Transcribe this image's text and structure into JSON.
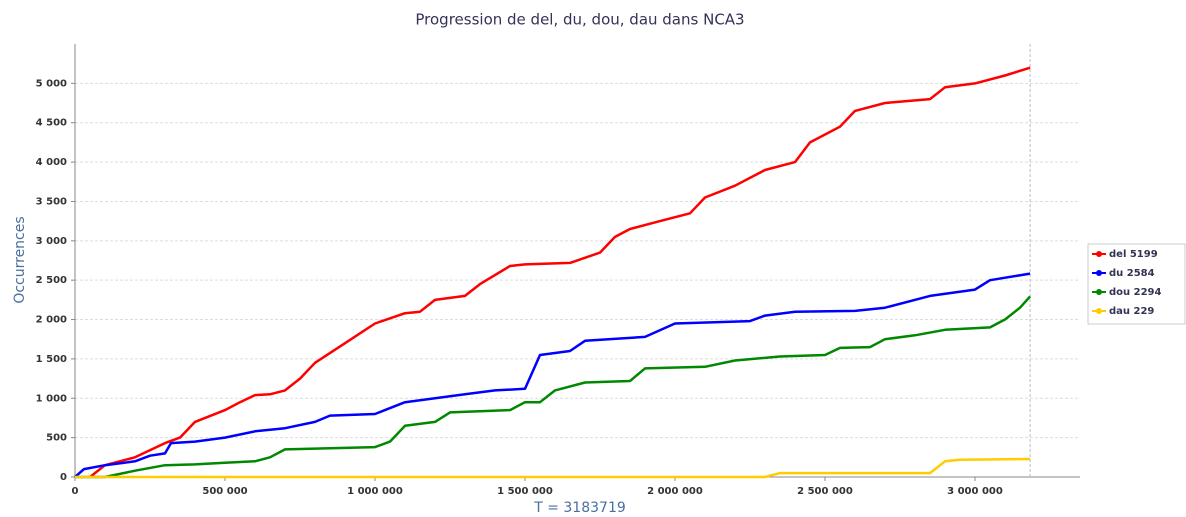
{
  "chart_data": {
    "type": "line",
    "title": "Progression de del, du, dou, dau dans NCA3",
    "x_label": "T = 3183719",
    "y_label": "Occurrences",
    "xlim": [
      0,
      3350000
    ],
    "ylim": [
      0,
      5500
    ],
    "xticks": [
      0,
      {
        "value": 500000,
        "label": "500 000"
      },
      {
        "value": 1000000,
        "label": "1 000 000"
      },
      {
        "value": 1500000,
        "label": "1 500 000"
      },
      {
        "value": 2000000,
        "label": "2 000 000"
      },
      {
        "value": 2500000,
        "label": "2 500 000"
      },
      {
        "value": 3000000,
        "label": "3 000 000"
      }
    ],
    "yticks": [
      0,
      500,
      {
        "value": 1000,
        "label": "1 000"
      },
      {
        "value": 1500,
        "label": "1 500"
      },
      {
        "value": 2000,
        "label": "2 000"
      },
      {
        "value": 2500,
        "label": "2 500"
      },
      {
        "value": 3000,
        "label": "3 000"
      },
      {
        "value": 3500,
        "label": "3 500"
      },
      {
        "value": 4000,
        "label": "4 000"
      },
      {
        "value": 4500,
        "label": "4 500"
      },
      {
        "value": 5000,
        "label": "5 000"
      }
    ],
    "grid": true,
    "marker_line_x": 3183719,
    "legend": "right",
    "series": [
      {
        "name": "del 5199",
        "color": "#ff0000",
        "x": [
          50000,
          100000,
          200000,
          300000,
          350000,
          400000,
          500000,
          550000,
          600000,
          650000,
          700000,
          750000,
          800000,
          900000,
          1000000,
          1100000,
          1150000,
          1200000,
          1300000,
          1350000,
          1450000,
          1500000,
          1650000,
          1750000,
          1800000,
          1850000,
          1950000,
          2050000,
          2100000,
          2200000,
          2300000,
          2400000,
          2450000,
          2550000,
          2600000,
          2700000,
          2850000,
          2900000,
          3000000,
          3100000,
          3183719
        ],
        "values": [
          0,
          150,
          250,
          430,
          500,
          700,
          850,
          950,
          1040,
          1050,
          1100,
          1250,
          1450,
          1700,
          1950,
          2080,
          2100,
          2250,
          2300,
          2450,
          2680,
          2700,
          2720,
          2850,
          3050,
          3150,
          3250,
          3350,
          3550,
          3700,
          3900,
          4000,
          4250,
          4450,
          4650,
          4750,
          4800,
          4950,
          5000,
          5100,
          5199
        ]
      },
      {
        "name": "du 2584",
        "color": "#0000ff",
        "x": [
          0,
          30000,
          100000,
          200000,
          250000,
          300000,
          320000,
          400000,
          500000,
          600000,
          700000,
          800000,
          850000,
          1000000,
          1100000,
          1300000,
          1400000,
          1500000,
          1550000,
          1650000,
          1700000,
          1900000,
          2000000,
          2250000,
          2300000,
          2400000,
          2600000,
          2700000,
          2850000,
          3000000,
          3050000,
          3183719
        ],
        "values": [
          0,
          100,
          150,
          200,
          270,
          300,
          430,
          450,
          500,
          580,
          620,
          700,
          780,
          800,
          950,
          1050,
          1100,
          1120,
          1550,
          1600,
          1730,
          1780,
          1950,
          1980,
          2050,
          2100,
          2110,
          2150,
          2300,
          2380,
          2500,
          2584
        ]
      },
      {
        "name": "dou 2294",
        "color": "#008800",
        "x": [
          0,
          100000,
          200000,
          300000,
          400000,
          500000,
          600000,
          650000,
          700000,
          1000000,
          1050000,
          1100000,
          1200000,
          1250000,
          1450000,
          1500000,
          1550000,
          1600000,
          1700000,
          1850000,
          1900000,
          2100000,
          2200000,
          2350000,
          2500000,
          2550000,
          2650000,
          2700000,
          2800000,
          2900000,
          3050000,
          3100000,
          3150000,
          3183719
        ],
        "values": [
          0,
          0,
          80,
          150,
          160,
          180,
          200,
          250,
          350,
          380,
          450,
          650,
          700,
          820,
          850,
          950,
          950,
          1100,
          1200,
          1220,
          1380,
          1400,
          1480,
          1530,
          1550,
          1640,
          1650,
          1750,
          1800,
          1870,
          1900,
          2000,
          2150,
          2294
        ]
      },
      {
        "name": "dau 229",
        "color": "#ffcc00",
        "x": [
          0,
          2300000,
          2350000,
          2850000,
          2900000,
          2950000,
          3183719
        ],
        "values": [
          0,
          0,
          50,
          50,
          200,
          220,
          229
        ]
      }
    ]
  }
}
